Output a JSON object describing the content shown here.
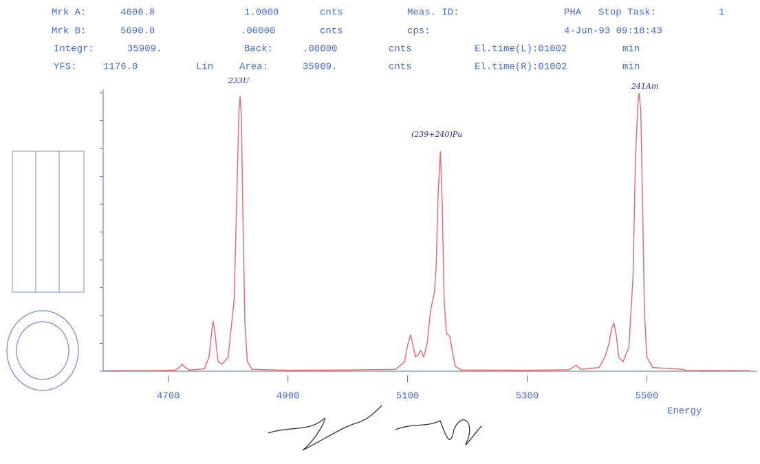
{
  "chart_data": {
    "type": "line",
    "annotations": [
      "Mrk A:",
      "4606.8",
      "1.0000",
      "cnts",
      "Meas. ID:",
      "PHA",
      "Stop Task:",
      "1",
      "Mrk B:",
      "5690.8",
      ".00000",
      "cnts",
      "cps:",
      "4-Jun-93 09:18:43",
      "Integr:",
      "35909.",
      "Back:",
      ".00000",
      "cnts",
      "El.time(L):01002",
      "min",
      "YFS:",
      "1176.0",
      "Lin",
      "Area:",
      "35909.",
      "cnts",
      "El.time(R):01002",
      "min"
    ],
    "peak_labels": [
      "233U",
      "(239+240)Pu",
      "241Am"
    ],
    "x_label": "Energy",
    "x": [
      4591,
      4690,
      4712,
      4720,
      4723,
      4727,
      4735,
      4760,
      4768,
      4773,
      4775,
      4778,
      4783,
      4790,
      4800,
      4810,
      4815,
      4818,
      4820,
      4822,
      4825,
      4828,
      4832,
      4840,
      4900,
      5000,
      5080,
      5095,
      5100,
      5105,
      5109,
      5113,
      5118,
      5122,
      5127,
      5133,
      5138,
      5142,
      5145,
      5148,
      5151,
      5155,
      5158,
      5161,
      5165,
      5171,
      5175,
      5180,
      5190,
      5300,
      5370,
      5382,
      5390,
      5420,
      5430,
      5437,
      5441,
      5445,
      5449,
      5453,
      5460,
      5470,
      5477,
      5481,
      5485,
      5487,
      5490,
      5493,
      5496,
      5500,
      5510,
      5560,
      5565,
      5672
    ],
    "series": [
      {
        "name": "PHA",
        "color": "#e07070",
        "values": [
          2,
          3,
          5,
          20,
          29,
          18,
          5,
          10,
          60,
          180,
          212,
          160,
          40,
          30,
          60,
          300,
          800,
          1100,
          1162,
          1080,
          600,
          200,
          40,
          8,
          4,
          5,
          8,
          40,
          110,
          154,
          110,
          60,
          70,
          87,
          60,
          120,
          250,
          300,
          334,
          450,
          750,
          929,
          700,
          300,
          160,
          145,
          80,
          20,
          5,
          4,
          6,
          25,
          8,
          15,
          60,
          120,
          180,
          203,
          150,
          60,
          40,
          100,
          400,
          900,
          1130,
          1176,
          1100,
          700,
          250,
          60,
          15,
          8,
          3,
          2
        ]
      }
    ],
    "xlim": [
      4591,
      5672
    ],
    "xticks": [
      4700,
      4900,
      5100,
      5300,
      5500
    ],
    "ylim": [
      0,
      1176
    ],
    "yticks": [
      0,
      117.6,
      235.2,
      352.8,
      470.4,
      588,
      705.6,
      823.2,
      940.8,
      1058.4,
      1176
    ]
  }
}
